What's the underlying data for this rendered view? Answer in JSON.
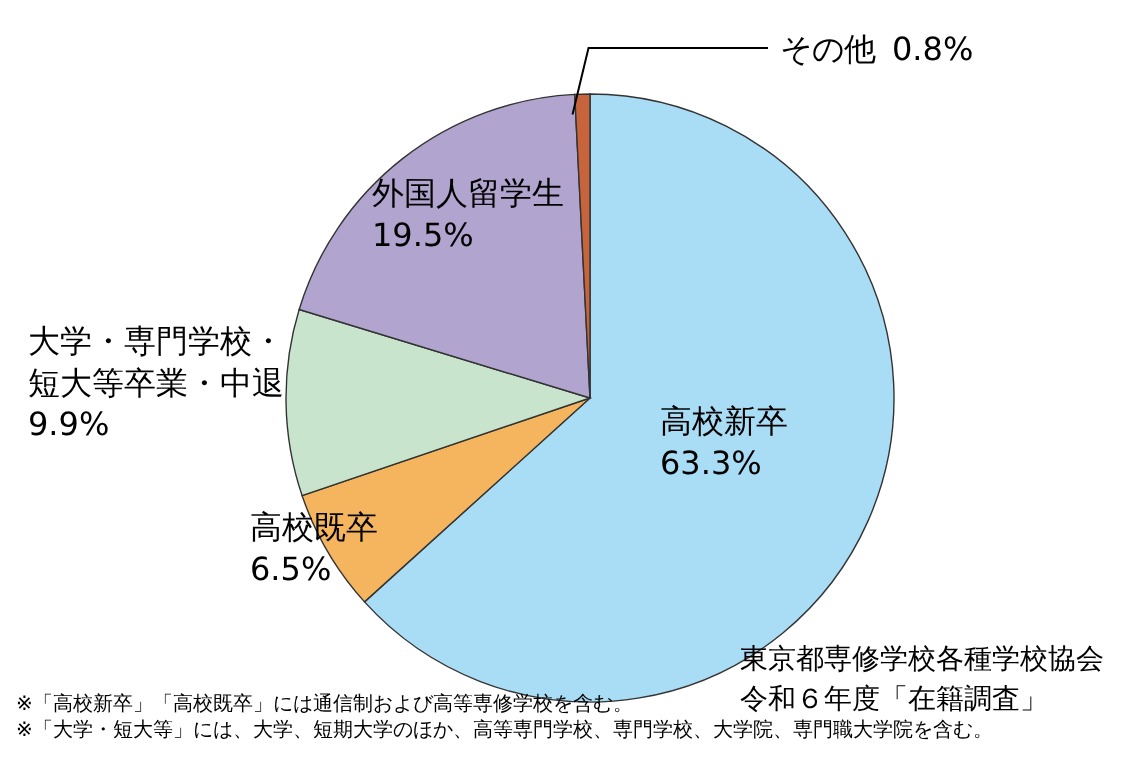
{
  "chart_data": {
    "type": "pie",
    "categories": [
      "高校新卒",
      "高校既卒",
      "大学・専門学校・短大等卒業・中退",
      "外国人留学生",
      "その他"
    ],
    "values": [
      63.3,
      6.5,
      9.9,
      19.5,
      0.8
    ],
    "value_labels": [
      "63.3%",
      "6.5%",
      "9.9%",
      "19.5%",
      "0.8%"
    ],
    "colors": [
      "#a9dcf5",
      "#f5b55f",
      "#c9e4cc",
      "#b1a5cf",
      "#c8643c"
    ],
    "legend": false,
    "annotations": [
      "東京都専修学校各種学校協会",
      "令和６年度「在籍調査」",
      "※「高校新卒」「高校既卒」には通信制および高等専修学校を含む。",
      "※「大学・短大等」には、大学、短期大学のほか、高等専門学校、専門学校、大学院、専門職大学院を含む。"
    ]
  }
}
